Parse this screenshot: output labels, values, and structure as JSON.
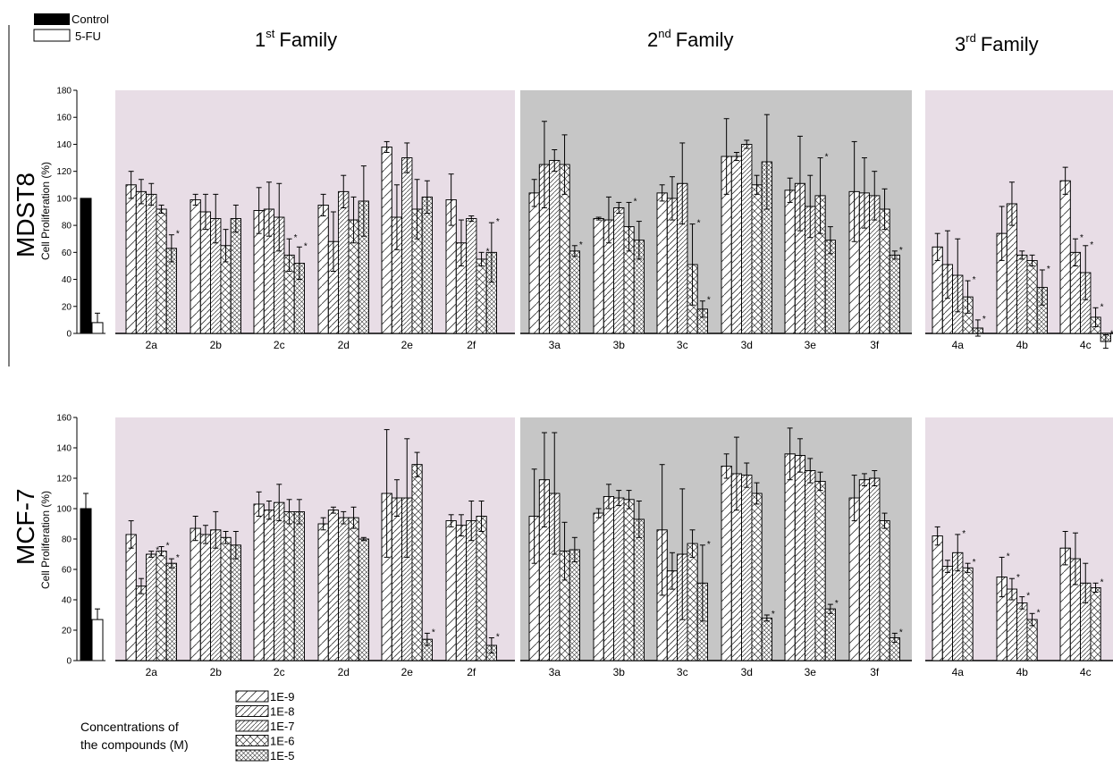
{
  "legend_top": {
    "items": [
      {
        "label": "Control",
        "fill": "#000000"
      },
      {
        "label": "5-FU",
        "fill": "#ffffff"
      }
    ]
  },
  "families": [
    {
      "base": "1",
      "sup": "st",
      "word": "Family"
    },
    {
      "base": "2",
      "sup": "nd",
      "word": "Family"
    },
    {
      "base": "3",
      "sup": "rd",
      "word": "Family"
    }
  ],
  "colors": {
    "family1_bg": "#e8dde6",
    "family2_bg": "#c6c6c6",
    "family3_bg": "#e8dde6",
    "bar": "#000000"
  },
  "ylabel": "Cell Proliferation (%)",
  "legend_bottom": {
    "title_line1": "Concentrations of",
    "title_line2": "the compounds (M)",
    "entries": [
      {
        "label": "1E-9",
        "pattern": "hatch-sparse"
      },
      {
        "label": "1E-8",
        "pattern": "hatch"
      },
      {
        "label": "1E-7",
        "pattern": "hatch-dense"
      },
      {
        "label": "1E-6",
        "pattern": "cross"
      },
      {
        "label": "1E-5",
        "pattern": "cross-dense"
      }
    ]
  },
  "chart_data": [
    {
      "type": "bar",
      "cell_line": "MDST8",
      "ylabel": "Cell Proliferation (%)",
      "ylim": [
        0,
        180
      ],
      "yticks": [
        0,
        20,
        40,
        60,
        80,
        100,
        120,
        140,
        160,
        180
      ],
      "reference": {
        "Control": {
          "value": 100,
          "err": 0
        },
        "5-FU": {
          "value": 8,
          "err": 7
        }
      },
      "series_names": [
        "1E-9",
        "1E-8",
        "1E-7",
        "1E-6",
        "1E-5"
      ],
      "groups": [
        {
          "label": "2a",
          "values": [
            110,
            105,
            103,
            92,
            63
          ],
          "errors": [
            10,
            9,
            8,
            3,
            10
          ],
          "sig": [
            false,
            false,
            false,
            false,
            true
          ]
        },
        {
          "label": "2b",
          "values": [
            99,
            90,
            85,
            65,
            85
          ],
          "errors": [
            4,
            13,
            18,
            12,
            10
          ],
          "sig": [
            false,
            false,
            false,
            false,
            false
          ]
        },
        {
          "label": "2c",
          "values": [
            91,
            92,
            86,
            58,
            52
          ],
          "errors": [
            17,
            20,
            25,
            12,
            12
          ],
          "sig": [
            false,
            false,
            false,
            true,
            true
          ]
        },
        {
          "label": "2d",
          "values": [
            95,
            68,
            105,
            84,
            98
          ],
          "errors": [
            8,
            22,
            12,
            17,
            26
          ],
          "sig": [
            false,
            false,
            false,
            false,
            false
          ]
        },
        {
          "label": "2e",
          "values": [
            138,
            86,
            130,
            92,
            101
          ],
          "errors": [
            4,
            24,
            11,
            22,
            12
          ],
          "sig": [
            false,
            false,
            false,
            false,
            false
          ]
        },
        {
          "label": "2f",
          "values": [
            99,
            67,
            85,
            55,
            60
          ],
          "errors": [
            19,
            17,
            2,
            5,
            22
          ],
          "sig": [
            false,
            false,
            false,
            true,
            true
          ]
        },
        {
          "label": "3a",
          "values": [
            104,
            125,
            128,
            125,
            61
          ],
          "errors": [
            10,
            32,
            8,
            22,
            4
          ],
          "sig": [
            false,
            false,
            false,
            false,
            true
          ]
        },
        {
          "label": "3b",
          "values": [
            85,
            84,
            93,
            79,
            69
          ],
          "errors": [
            1,
            17,
            4,
            18,
            14
          ],
          "sig": [
            false,
            false,
            false,
            true,
            false
          ]
        },
        {
          "label": "3c",
          "values": [
            104,
            100,
            111,
            51,
            18
          ],
          "errors": [
            6,
            16,
            30,
            30,
            6
          ],
          "sig": [
            false,
            false,
            false,
            true,
            true
          ]
        },
        {
          "label": "3d",
          "values": [
            131,
            131,
            140,
            110,
            127
          ],
          "errors": [
            28,
            3,
            3,
            7,
            35
          ],
          "sig": [
            false,
            false,
            false,
            false,
            false
          ]
        },
        {
          "label": "3e",
          "values": [
            106,
            111,
            94,
            102,
            69
          ],
          "errors": [
            9,
            35,
            23,
            28,
            10
          ],
          "sig": [
            false,
            false,
            false,
            true,
            false
          ]
        },
        {
          "label": "3f",
          "values": [
            105,
            104,
            102,
            92,
            58
          ],
          "errors": [
            37,
            26,
            18,
            15,
            3
          ],
          "sig": [
            false,
            false,
            false,
            false,
            true
          ]
        },
        {
          "label": "4a",
          "values": [
            64,
            51,
            43,
            27,
            4
          ],
          "errors": [
            10,
            25,
            27,
            12,
            6
          ],
          "sig": [
            false,
            false,
            false,
            true,
            true
          ]
        },
        {
          "label": "4b",
          "values": [
            74,
            96,
            58,
            54,
            34
          ],
          "errors": [
            20,
            16,
            3,
            4,
            13
          ],
          "sig": [
            false,
            false,
            false,
            false,
            true
          ]
        },
        {
          "label": "4c",
          "values": [
            113,
            60,
            45,
            12,
            -6
          ],
          "errors": [
            10,
            10,
            20,
            7,
            5
          ],
          "sig": [
            false,
            true,
            true,
            true,
            true
          ]
        }
      ]
    },
    {
      "type": "bar",
      "cell_line": "MCF-7",
      "ylabel": "Cell Proliferation (%)",
      "ylim": [
        0,
        160
      ],
      "yticks": [
        0,
        20,
        40,
        60,
        80,
        100,
        120,
        140,
        160
      ],
      "reference": {
        "Control": {
          "value": 100,
          "err": 10
        },
        "5-FU": {
          "value": 27,
          "err": 7
        }
      },
      "series_names": [
        "1E-9",
        "1E-8",
        "1E-7",
        "1E-6",
        "1E-5"
      ],
      "groups": [
        {
          "label": "2a",
          "values": [
            83,
            49,
            70,
            72,
            64
          ],
          "errors": [
            9,
            5,
            2,
            3,
            3
          ],
          "sig": [
            false,
            true,
            true,
            true,
            true
          ]
        },
        {
          "label": "2b",
          "values": [
            87,
            83,
            86,
            81,
            76
          ],
          "errors": [
            8,
            6,
            12,
            4,
            9
          ],
          "sig": [
            false,
            false,
            false,
            false,
            false
          ]
        },
        {
          "label": "2c",
          "values": [
            103,
            99,
            104,
            98,
            98
          ],
          "errors": [
            8,
            6,
            12,
            8,
            8
          ],
          "sig": [
            false,
            false,
            false,
            false,
            false
          ]
        },
        {
          "label": "2d",
          "values": [
            90,
            99,
            94,
            94,
            80
          ],
          "errors": [
            4,
            2,
            4,
            7,
            1
          ],
          "sig": [
            false,
            false,
            false,
            false,
            false
          ]
        },
        {
          "label": "2e",
          "values": [
            110,
            107,
            107,
            129,
            14
          ],
          "errors": [
            42,
            12,
            39,
            8,
            4
          ],
          "sig": [
            false,
            false,
            false,
            false,
            true
          ]
        },
        {
          "label": "2f",
          "values": [
            92,
            89,
            92,
            95,
            10
          ],
          "errors": [
            4,
            7,
            13,
            10,
            5
          ],
          "sig": [
            false,
            false,
            false,
            false,
            true
          ]
        },
        {
          "label": "3a",
          "values": [
            95,
            119,
            110,
            72,
            73
          ],
          "errors": [
            31,
            31,
            40,
            19,
            8
          ],
          "sig": [
            false,
            false,
            false,
            false,
            false
          ]
        },
        {
          "label": "3b",
          "values": [
            97,
            108,
            107,
            106,
            93
          ],
          "errors": [
            3,
            8,
            5,
            6,
            12
          ],
          "sig": [
            false,
            false,
            false,
            false,
            false
          ]
        },
        {
          "label": "3c",
          "values": [
            86,
            59,
            70,
            77,
            51
          ],
          "errors": [
            43,
            12,
            43,
            9,
            25
          ],
          "sig": [
            false,
            false,
            false,
            false,
            true
          ]
        },
        {
          "label": "3d",
          "values": [
            128,
            123,
            122,
            110,
            28
          ],
          "errors": [
            8,
            24,
            8,
            7,
            2
          ],
          "sig": [
            false,
            false,
            false,
            false,
            true
          ]
        },
        {
          "label": "3e",
          "values": [
            136,
            135,
            125,
            118,
            34
          ],
          "errors": [
            17,
            11,
            8,
            6,
            3
          ],
          "sig": [
            false,
            false,
            false,
            false,
            true
          ]
        },
        {
          "label": "3f",
          "values": [
            107,
            119,
            120,
            92,
            15
          ],
          "errors": [
            15,
            4,
            5,
            5,
            3
          ],
          "sig": [
            false,
            false,
            false,
            false,
            true
          ]
        },
        {
          "label": "4a",
          "values": [
            82,
            62,
            71,
            61,
            null
          ],
          "errors": [
            6,
            4,
            12,
            3,
            0
          ],
          "sig": [
            false,
            true,
            true,
            true,
            false
          ]
        },
        {
          "label": "4b",
          "values": [
            55,
            47,
            38,
            27,
            null
          ],
          "errors": [
            13,
            7,
            4,
            4,
            0
          ],
          "sig": [
            true,
            true,
            true,
            true,
            false
          ]
        },
        {
          "label": "4c",
          "values": [
            74,
            67,
            51,
            48,
            null
          ],
          "errors": [
            11,
            17,
            13,
            3,
            0
          ],
          "sig": [
            false,
            false,
            false,
            true,
            false
          ]
        }
      ]
    }
  ]
}
